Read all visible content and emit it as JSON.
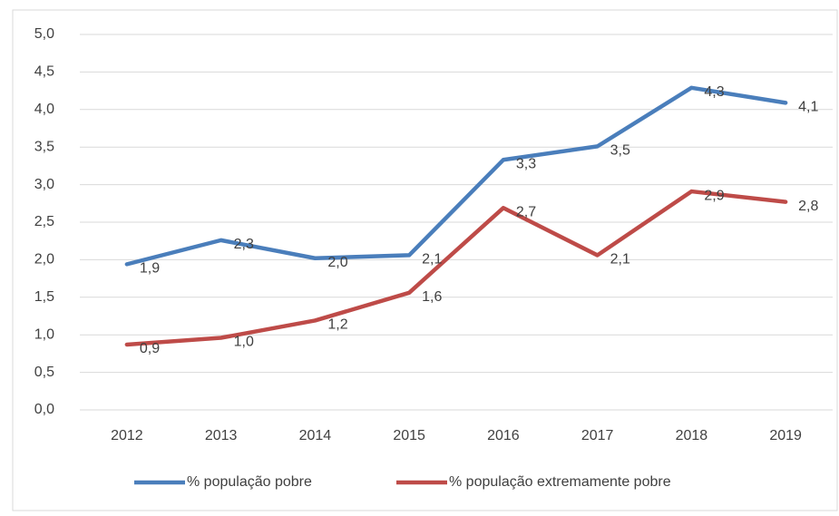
{
  "chart_data": {
    "type": "line",
    "categories": [
      "2012",
      "2013",
      "2014",
      "2015",
      "2016",
      "2017",
      "2018",
      "2019"
    ],
    "series": [
      {
        "name": "% população pobre",
        "color": "#4a7ebb",
        "values": [
          1.94,
          2.26,
          2.02,
          2.06,
          3.33,
          3.51,
          4.29,
          4.09
        ],
        "value_labels": [
          "1,9",
          "2,3",
          "2,0",
          "2,1",
          "3,3",
          "3,5",
          "4,3",
          "4,1"
        ]
      },
      {
        "name": "% população extremamente pobre",
        "color": "#be4b48",
        "values": [
          0.87,
          0.96,
          1.19,
          1.56,
          2.69,
          2.06,
          2.91,
          2.77
        ],
        "value_labels": [
          "0,9",
          "1,0",
          "1,2",
          "1,6",
          "2,7",
          "2,1",
          "2,9",
          "2,8"
        ]
      }
    ],
    "ylim": [
      0,
      5
    ],
    "yticks": [
      {
        "value": 0,
        "label": "0,0"
      },
      {
        "value": 0.5,
        "label": "0,5"
      },
      {
        "value": 1,
        "label": "1,0"
      },
      {
        "value": 1.5,
        "label": "1,5"
      },
      {
        "value": 2,
        "label": "2,0"
      },
      {
        "value": 2.5,
        "label": "2,5"
      },
      {
        "value": 3,
        "label": "3,0"
      },
      {
        "value": 3.5,
        "label": "3,5"
      },
      {
        "value": 4,
        "label": "4,0"
      },
      {
        "value": 4.5,
        "label": "4,5"
      },
      {
        "value": 5,
        "label": "5,0"
      }
    ],
    "grid": true,
    "legend": "bottom"
  }
}
